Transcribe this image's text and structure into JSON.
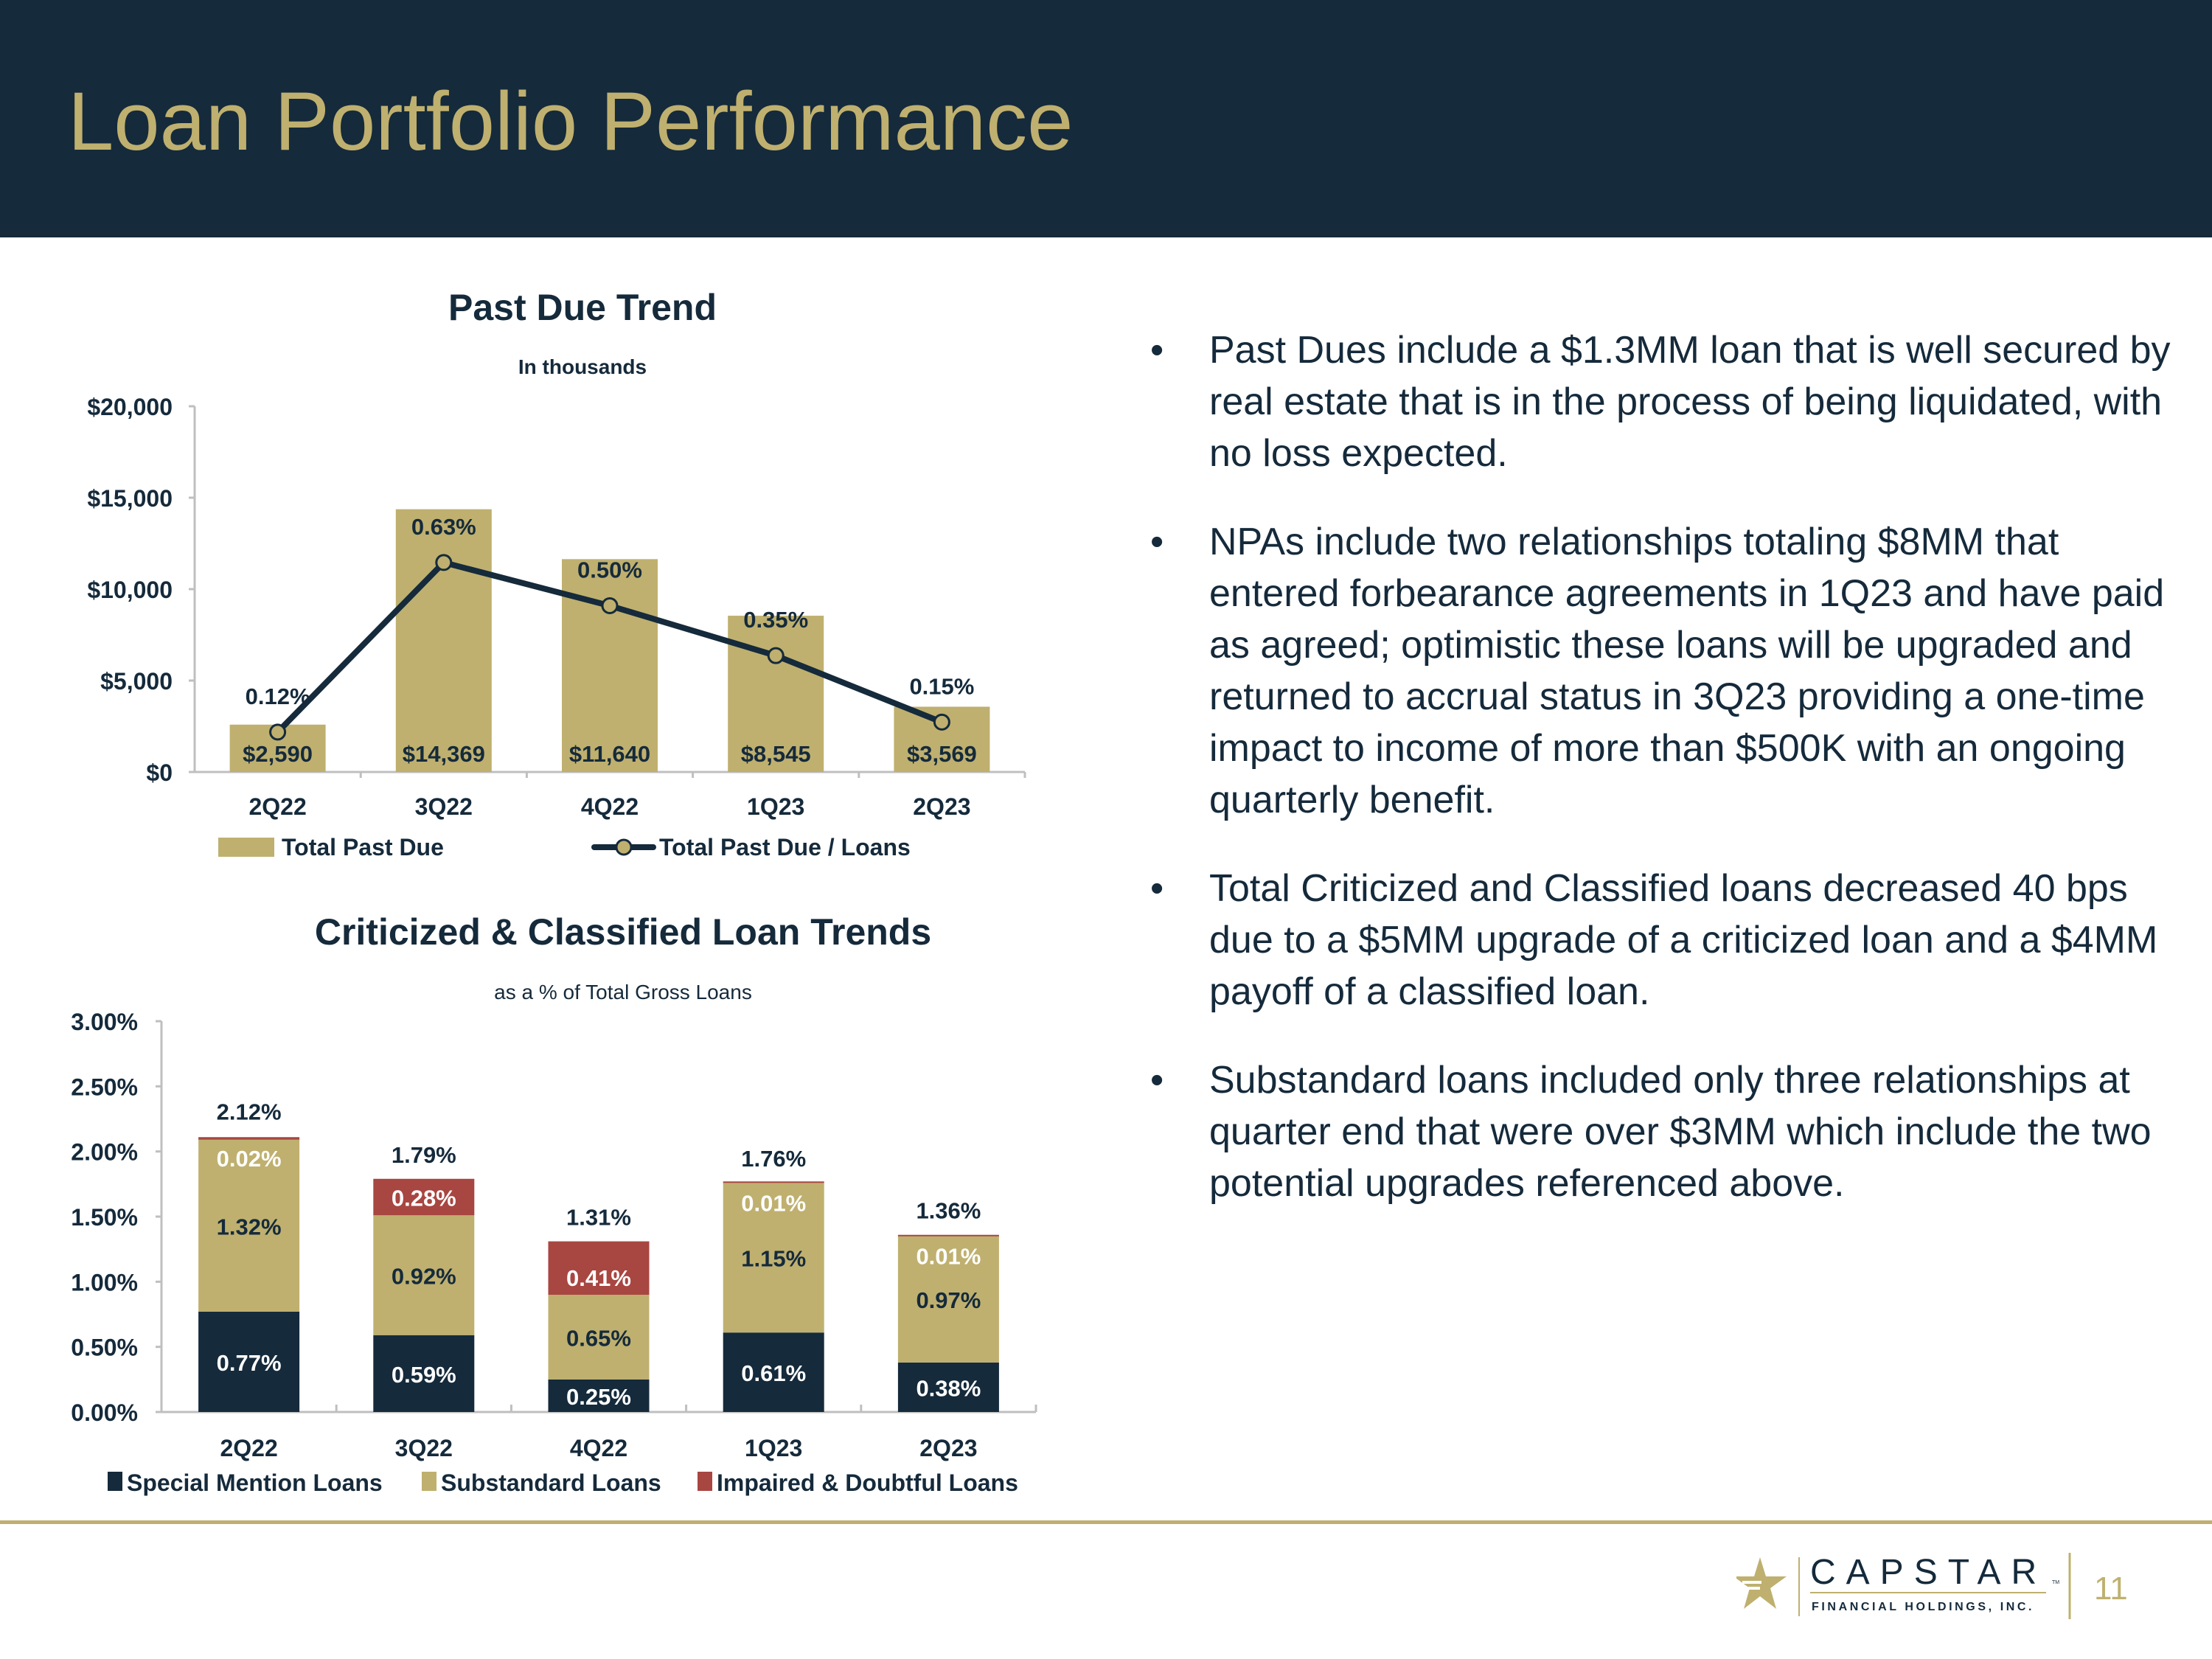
{
  "header": {
    "title": "Loan Portfolio Performance"
  },
  "colors": {
    "navy": "#152a3b",
    "gold": "#bfb06f",
    "red": "#a84641",
    "axis": "#bfbfbf"
  },
  "chart_data": [
    {
      "type": "bar+line",
      "title": "Past Due Trend",
      "subtitle": "In thousands",
      "categories": [
        "2Q22",
        "3Q22",
        "4Q22",
        "1Q23",
        "2Q23"
      ],
      "ylim": [
        0,
        20000
      ],
      "yticks": [
        0,
        5000,
        10000,
        15000,
        20000
      ],
      "ytick_labels": [
        "$0",
        "$5,000",
        "$10,000",
        "$15,000",
        "$20,000"
      ],
      "series": [
        {
          "name": "Total Past Due",
          "kind": "bar",
          "values": [
            2590,
            14369,
            11640,
            8545,
            3569
          ],
          "labels": [
            "$2,590",
            "$14,369",
            "$11,640",
            "$8,545",
            "$3,569"
          ]
        },
        {
          "name": "Total Past Due / Loans",
          "kind": "line",
          "axis": "secondary",
          "values": [
            0.12,
            0.63,
            0.5,
            0.35,
            0.15
          ],
          "labels": [
            "0.12%",
            "0.63%",
            "0.50%",
            "0.35%",
            "0.15%"
          ]
        }
      ],
      "legend": {
        "placement": "bottom",
        "entries": [
          "Total Past Due",
          "Total Past Due / Loans"
        ]
      }
    },
    {
      "type": "stacked-bar",
      "title": "Criticized & Classified Loan Trends",
      "subtitle": "as a % of Total Gross Loans",
      "categories": [
        "2Q22",
        "3Q22",
        "4Q22",
        "1Q23",
        "2Q23"
      ],
      "ylim": [
        0,
        3.0
      ],
      "yticks": [
        0,
        0.5,
        1.0,
        1.5,
        2.0,
        2.5,
        3.0
      ],
      "ytick_labels": [
        "0.00%",
        "0.50%",
        "1.00%",
        "1.50%",
        "2.00%",
        "2.50%",
        "3.00%"
      ],
      "series": [
        {
          "name": "Special Mention Loans",
          "values": [
            0.77,
            0.59,
            0.25,
            0.61,
            0.38
          ],
          "labels": [
            "0.77%",
            "0.59%",
            "0.25%",
            "0.61%",
            "0.38%"
          ]
        },
        {
          "name": "Substandard Loans",
          "values": [
            1.32,
            0.92,
            0.65,
            1.15,
            0.97
          ],
          "labels": [
            "1.32%",
            "0.92%",
            "0.65%",
            "1.15%",
            "0.97%"
          ]
        },
        {
          "name": "Impaired & Doubtful Loans",
          "values": [
            0.02,
            0.28,
            0.41,
            0.01,
            0.01
          ],
          "labels": [
            "0.02%",
            "0.28%",
            "0.41%",
            "0.01%",
            "0.01%"
          ]
        }
      ],
      "totals": [
        2.12,
        1.79,
        1.31,
        1.76,
        1.36
      ],
      "total_labels": [
        "2.12%",
        "1.79%",
        "1.31%",
        "1.76%",
        "1.36%"
      ],
      "legend": {
        "placement": "bottom",
        "entries": [
          "Special Mention Loans",
          "Substandard Loans",
          "Impaired & Doubtful Loans"
        ]
      }
    }
  ],
  "bullets": [
    "Past Dues include a $1.3MM loan that is well secured by real estate that is in the process of being liquidated, with no loss expected.",
    "NPAs include two relationships totaling $8MM that entered forbearance agreements in 1Q23 and have paid as agreed; optimistic these loans will be upgraded and returned to accrual status in 3Q23 providing a one-time impact to income of more than $500K with an ongoing quarterly benefit.",
    "Total Criticized and Classified loans decreased 40 bps due to a $5MM upgrade of a criticized loan and a $4MM payoff of a classified loan.",
    "Substandard loans included only three relationships at quarter end that were over $3MM which include the two potential upgrades referenced above."
  ],
  "bullet_glyph": "•",
  "footer": {
    "logo_name": "CAPSTAR",
    "logo_tm": "TM",
    "logo_tagline": "FINANCIAL HOLDINGS, INC.",
    "page_number": "11"
  }
}
